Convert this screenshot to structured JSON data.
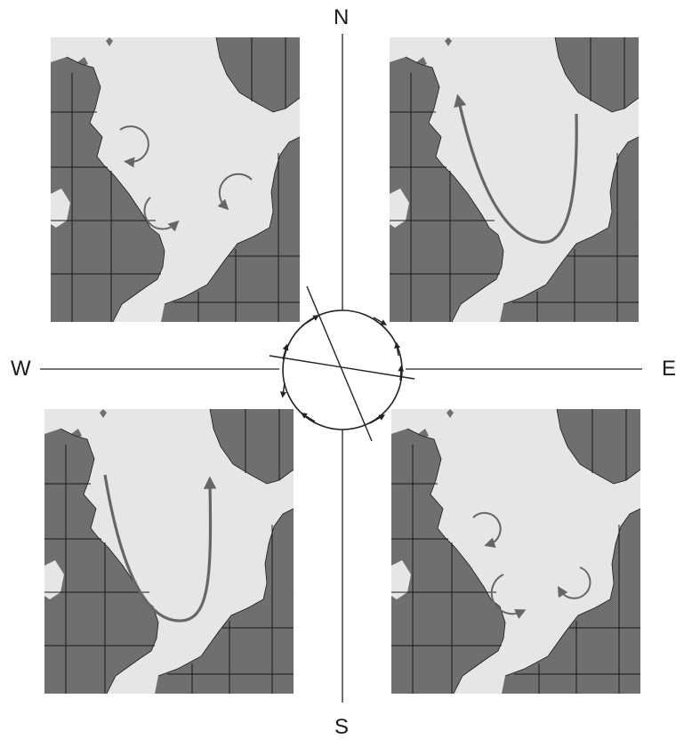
{
  "compass": {
    "north": "N",
    "south": "S",
    "east": "E",
    "west": "W"
  },
  "colors": {
    "sea": "#e6e6e6",
    "land": "#6f6f6f",
    "grid": "#1a1a1a",
    "arrow": "#666666",
    "axis": "#222222"
  },
  "panels": [
    {
      "id": "panel-nw",
      "flow": "three-eddies-clockwise"
    },
    {
      "id": "panel-ne",
      "flow": "northward-loop-along-uk-coast"
    },
    {
      "id": "panel-sw",
      "flow": "northward-loop-toward-norway"
    },
    {
      "id": "panel-se",
      "flow": "three-eddies-anticlockwise"
    }
  ],
  "icons": [
    "compass-circle-icon",
    "curved-arrow-icon",
    "eddy-arrow-icon"
  ]
}
